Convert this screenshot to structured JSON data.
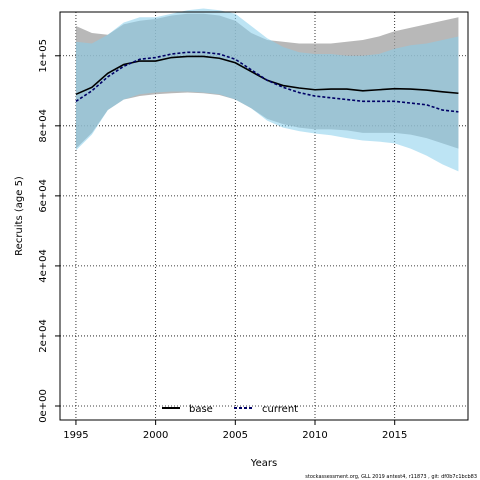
{
  "chart_data": {
    "type": "line",
    "title": "",
    "xlabel": "Years",
    "ylabel": "Recruits (age 5)",
    "xlim": [
      1994,
      2019.6
    ],
    "ylim": [
      -4000,
      112500
    ],
    "x_ticks": [
      1995,
      2000,
      2005,
      2010,
      2015
    ],
    "y_ticks": [
      0,
      20000,
      40000,
      60000,
      80000,
      100000
    ],
    "y_tick_labels": [
      "0e+00",
      "2e+04",
      "4e+04",
      "6e+04",
      "8e+04",
      "1e+05"
    ],
    "grid": true,
    "legend_position": "bottom-center",
    "footnote": "stockassessment.org, GLL 2019 antest4, r11873 , git: df0b7c1bcb83",
    "colors": {
      "base_line": "#000000",
      "base_band": "#a0a0a0",
      "current_line": "#000066",
      "current_band": "#87ceeb"
    },
    "x": [
      1995,
      1996,
      1997,
      1998,
      1999,
      2000,
      2001,
      2002,
      2003,
      2004,
      2005,
      2006,
      2007,
      2008,
      2009,
      2010,
      2011,
      2012,
      2013,
      2014,
      2015,
      2016,
      2017,
      2018,
      2019
    ],
    "series": [
      {
        "name": "base",
        "style": "solid",
        "values": [
          89000,
          91000,
          95000,
          97500,
          98500,
          98500,
          99500,
          99800,
          99800,
          99300,
          98000,
          95500,
          93000,
          91500,
          90800,
          90300,
          90500,
          90500,
          90000,
          90300,
          90600,
          90500,
          90200,
          89700,
          89300
        ],
        "lower": [
          73500,
          78000,
          84500,
          87500,
          88500,
          89000,
          89300,
          89500,
          89300,
          88800,
          87500,
          85000,
          82000,
          80500,
          79500,
          79000,
          79000,
          78700,
          78000,
          78000,
          78000,
          77500,
          76500,
          75000,
          73500
        ],
        "upper": [
          108500,
          106500,
          106000,
          109000,
          110000,
          110500,
          111500,
          112000,
          112000,
          111500,
          110000,
          106500,
          104500,
          104000,
          103500,
          103500,
          103500,
          104000,
          104500,
          105500,
          107000,
          108000,
          109000,
          110000,
          111000
        ]
      },
      {
        "name": "current",
        "style": "dashed",
        "values": [
          87000,
          90000,
          94000,
          97000,
          99000,
          99500,
          100500,
          101000,
          101000,
          100500,
          99000,
          96000,
          93000,
          91000,
          89500,
          88500,
          88000,
          87500,
          87000,
          87000,
          87000,
          86500,
          86000,
          84500,
          84000
        ],
        "lower": [
          73000,
          77500,
          84500,
          87500,
          89000,
          89500,
          89800,
          89800,
          89500,
          89000,
          87500,
          85000,
          81500,
          79500,
          78500,
          77800,
          77300,
          76500,
          75800,
          75500,
          75000,
          73500,
          71500,
          69000,
          67000
        ],
        "upper": [
          104000,
          103500,
          106000,
          109500,
          111000,
          111000,
          112000,
          113000,
          113500,
          113000,
          112000,
          108500,
          105000,
          102500,
          101000,
          100500,
          100500,
          100000,
          100000,
          100500,
          102000,
          103000,
          103500,
          104500,
          105500
        ]
      }
    ]
  }
}
